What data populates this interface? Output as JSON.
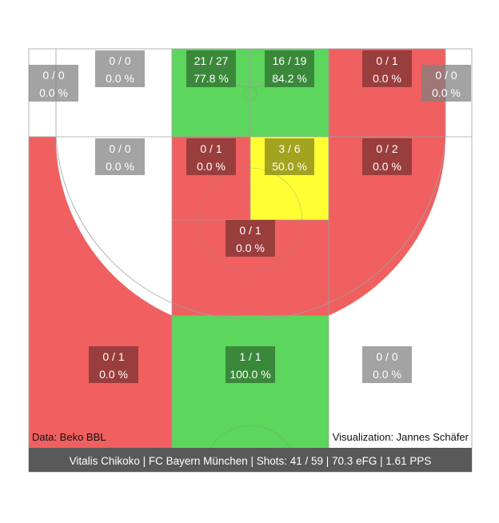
{
  "chart_data": {
    "type": "heatmap",
    "title": "Vitalis Chikoko | FC Bayern München | Shots: 41 / 59 | 70.3 eFG | 1.61 PPS",
    "source_credit": "Data: Beko BBL",
    "author_credit": "Visualization: Jannes Schäfer",
    "colors": {
      "good": "#5cd65c",
      "average": "#ffff33",
      "bad": "#f06060",
      "none": "#ffffff",
      "label_good": "#2e6b2e",
      "label_average": "#7f7f19",
      "label_bad": "#782f2f",
      "label_none": "#808080",
      "footer": "#595959"
    },
    "zones": [
      {
        "id": "corner-left-upper",
        "made": 0,
        "attempts": 0,
        "fg_label": "0 / 0",
        "pct_label": "0.0 %",
        "rating": "none"
      },
      {
        "id": "wing-left-three",
        "made": 0,
        "attempts": 0,
        "fg_label": "0 / 0",
        "pct_label": "0.0 %",
        "rating": "none"
      },
      {
        "id": "restricted-left",
        "made": 21,
        "attempts": 27,
        "fg_label": "21 / 27",
        "pct_label": "77.8 %",
        "rating": "good"
      },
      {
        "id": "restricted-right",
        "made": 16,
        "attempts": 19,
        "fg_label": "16 / 19",
        "pct_label": "84.2 %",
        "rating": "good"
      },
      {
        "id": "short-right-baseline",
        "made": 0,
        "attempts": 1,
        "fg_label": "0 / 1",
        "pct_label": "0.0 %",
        "rating": "bad"
      },
      {
        "id": "corner-right-upper",
        "made": 0,
        "attempts": 0,
        "fg_label": "0 / 0",
        "pct_label": "0.0 %",
        "rating": "none"
      },
      {
        "id": "midrange-left-wing",
        "made": 0,
        "attempts": 0,
        "fg_label": "0 / 0",
        "pct_label": "0.0 %",
        "rating": "none"
      },
      {
        "id": "paint-left",
        "made": 0,
        "attempts": 1,
        "fg_label": "0 / 1",
        "pct_label": "0.0 %",
        "rating": "bad"
      },
      {
        "id": "paint-right",
        "made": 3,
        "attempts": 6,
        "fg_label": "3 / 6",
        "pct_label": "50.0 %",
        "rating": "average"
      },
      {
        "id": "midrange-right-wing",
        "made": 0,
        "attempts": 2,
        "fg_label": "0 / 2",
        "pct_label": "0.0 %",
        "rating": "bad"
      },
      {
        "id": "midrange-top",
        "made": 0,
        "attempts": 1,
        "fg_label": "0 / 1",
        "pct_label": "0.0 %",
        "rating": "bad"
      },
      {
        "id": "three-left",
        "made": 0,
        "attempts": 1,
        "fg_label": "0 / 1",
        "pct_label": "0.0 %",
        "rating": "bad"
      },
      {
        "id": "three-center",
        "made": 1,
        "attempts": 1,
        "fg_label": "1 / 1",
        "pct_label": "100.0 %",
        "rating": "good"
      },
      {
        "id": "three-right",
        "made": 0,
        "attempts": 0,
        "fg_label": "0 / 0",
        "pct_label": "0.0 %",
        "rating": "none"
      }
    ]
  }
}
